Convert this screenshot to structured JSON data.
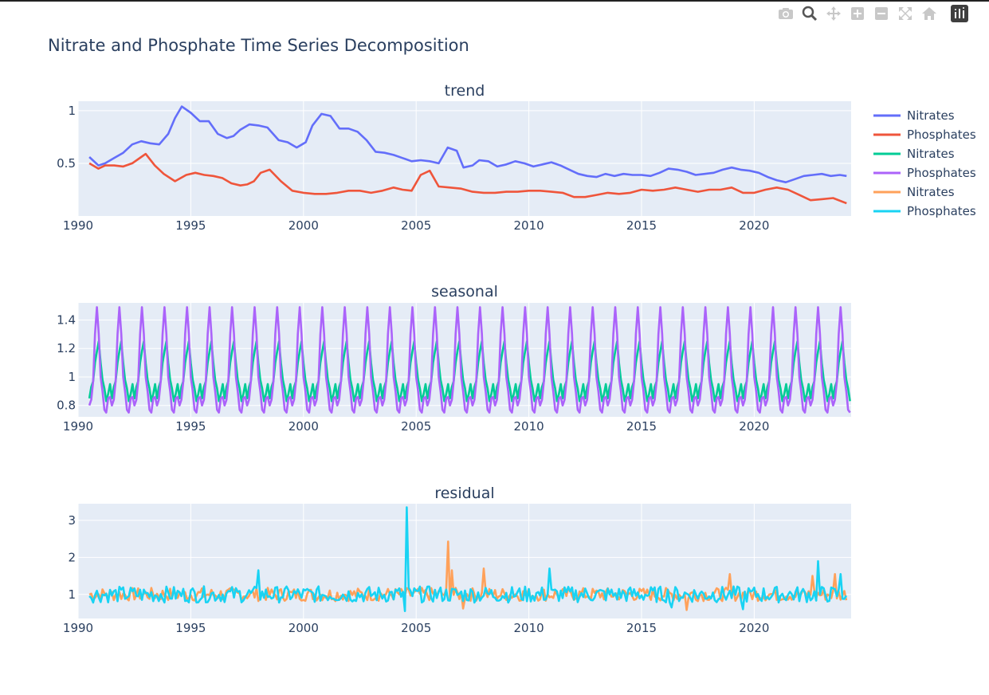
{
  "toolbar": {
    "icons": [
      "camera-icon",
      "zoom-icon",
      "pan-icon",
      "zoom-in-icon",
      "zoom-out-icon",
      "autoscale-icon",
      "home-icon",
      "plotly-logo-icon"
    ]
  },
  "chart_data": {
    "type": "line",
    "title": "Nitrate and Phosphate Time Series Decomposition",
    "x_range": [
      1990,
      2024.3
    ],
    "x_ticks": [
      "1990",
      "1995",
      "2000",
      "2005",
      "2010",
      "2015",
      "2020"
    ],
    "legend_placement": "top-right",
    "legend": [
      {
        "name": "Nitrates",
        "color": "#636efa"
      },
      {
        "name": "Phosphates",
        "color": "#ef553b"
      },
      {
        "name": "Nitrates",
        "color": "#00cc96"
      },
      {
        "name": "Phosphates",
        "color": "#ab63fa"
      },
      {
        "name": "Nitrates",
        "color": "#ffa15a"
      },
      {
        "name": "Phosphates",
        "color": "#19d3f3"
      }
    ],
    "subplots": [
      {
        "subtitle": "trend",
        "ylim": [
          0.0,
          1.09
        ],
        "yticks": [
          {
            "v": 1,
            "label": "1"
          },
          {
            "v": 0.5,
            "label": "0.5"
          }
        ],
        "series": [
          {
            "name": "Nitrates",
            "color": "#636efa",
            "x": [
              1990.5,
              1990.9,
              1991.2,
              1991.6,
              1992,
              1992.4,
              1992.8,
              1993.2,
              1993.6,
              1994,
              1994.3,
              1994.6,
              1995,
              1995.4,
              1995.8,
              1996.2,
              1996.6,
              1996.9,
              1997.2,
              1997.6,
              1998,
              1998.4,
              1998.9,
              1999.3,
              1999.7,
              2000.1,
              2000.4,
              2000.8,
              2001.2,
              2001.6,
              2002,
              2002.4,
              2002.8,
              2003.2,
              2003.6,
              2004,
              2004.4,
              2004.8,
              2005.2,
              2005.6,
              2006,
              2006.4,
              2006.8,
              2007.1,
              2007.5,
              2007.8,
              2008.2,
              2008.6,
              2009,
              2009.4,
              2009.8,
              2010.2,
              2010.6,
              2011,
              2011.4,
              2011.8,
              2012.2,
              2012.6,
              2013,
              2013.4,
              2013.8,
              2014.2,
              2014.6,
              2015,
              2015.4,
              2015.8,
              2016.2,
              2016.6,
              2017,
              2017.4,
              2017.8,
              2018.2,
              2018.6,
              2019,
              2019.4,
              2019.8,
              2020.2,
              2020.6,
              2021,
              2021.4,
              2021.8,
              2022.2,
              2022.6,
              2023,
              2023.4,
              2023.8,
              2024.1
            ],
            "y": [
              0.56,
              0.48,
              0.5,
              0.55,
              0.6,
              0.68,
              0.71,
              0.69,
              0.68,
              0.78,
              0.93,
              1.04,
              0.98,
              0.9,
              0.9,
              0.78,
              0.74,
              0.76,
              0.82,
              0.87,
              0.86,
              0.84,
              0.72,
              0.7,
              0.65,
              0.7,
              0.86,
              0.97,
              0.95,
              0.83,
              0.83,
              0.8,
              0.72,
              0.61,
              0.6,
              0.58,
              0.55,
              0.52,
              0.53,
              0.52,
              0.5,
              0.65,
              0.62,
              0.46,
              0.48,
              0.53,
              0.52,
              0.47,
              0.49,
              0.52,
              0.5,
              0.47,
              0.49,
              0.51,
              0.48,
              0.44,
              0.4,
              0.38,
              0.37,
              0.4,
              0.38,
              0.4,
              0.39,
              0.39,
              0.38,
              0.41,
              0.45,
              0.44,
              0.42,
              0.39,
              0.4,
              0.41,
              0.44,
              0.46,
              0.44,
              0.43,
              0.41,
              0.37,
              0.34,
              0.32,
              0.35,
              0.38,
              0.39,
              0.4,
              0.38,
              0.39,
              0.38
            ]
          },
          {
            "name": "Phosphates",
            "color": "#ef553b",
            "x": [
              1990.5,
              1990.9,
              1991.2,
              1991.6,
              1992,
              1992.4,
              1992.8,
              1993.0,
              1993.4,
              1993.8,
              1994.3,
              1994.8,
              1995.2,
              1995.6,
              1996,
              1996.4,
              1996.8,
              1997.2,
              1997.5,
              1997.8,
              1998.1,
              1998.5,
              1999,
              1999.5,
              2000,
              2000.5,
              2001,
              2001.5,
              2002,
              2002.5,
              2003,
              2003.5,
              2004,
              2004.4,
              2004.8,
              2005.2,
              2005.6,
              2006,
              2006.5,
              2007,
              2007.5,
              2008,
              2008.5,
              2009,
              2009.5,
              2010,
              2010.5,
              2011,
              2011.5,
              2012,
              2012.5,
              2013,
              2013.5,
              2014,
              2014.5,
              2015,
              2015.5,
              2016,
              2016.5,
              2017,
              2017.5,
              2018,
              2018.5,
              2019,
              2019.5,
              2020,
              2020.5,
              2021,
              2021.5,
              2022,
              2022.5,
              2023,
              2023.5,
              2024.1
            ],
            "y": [
              0.5,
              0.45,
              0.48,
              0.48,
              0.47,
              0.5,
              0.56,
              0.59,
              0.48,
              0.4,
              0.33,
              0.39,
              0.41,
              0.39,
              0.38,
              0.36,
              0.31,
              0.29,
              0.3,
              0.33,
              0.41,
              0.44,
              0.33,
              0.24,
              0.22,
              0.21,
              0.21,
              0.22,
              0.24,
              0.24,
              0.22,
              0.24,
              0.27,
              0.25,
              0.24,
              0.39,
              0.43,
              0.28,
              0.27,
              0.26,
              0.23,
              0.22,
              0.22,
              0.23,
              0.23,
              0.24,
              0.24,
              0.23,
              0.22,
              0.18,
              0.18,
              0.2,
              0.22,
              0.21,
              0.22,
              0.25,
              0.24,
              0.25,
              0.27,
              0.25,
              0.23,
              0.25,
              0.25,
              0.27,
              0.22,
              0.22,
              0.25,
              0.27,
              0.25,
              0.2,
              0.15,
              0.16,
              0.17,
              0.12
            ]
          }
        ]
      },
      {
        "subtitle": "seasonal",
        "ylim": [
          0.72,
          1.52
        ],
        "yticks": [
          {
            "v": 1.4,
            "label": "1.4"
          },
          {
            "v": 1.2,
            "label": "1.2"
          },
          {
            "v": 1,
            "label": "1"
          },
          {
            "v": 0.8,
            "label": "0.8"
          }
        ],
        "period_years": 1,
        "start_year": 1990.5,
        "series": [
          {
            "name": "Nitrates",
            "color": "#00cc96",
            "monthly_pattern": [
              0.85,
              0.93,
              0.97,
              1.1,
              1.18,
              1.25,
              1.1,
              0.98,
              0.92,
              0.83,
              0.88,
              0.95
            ]
          },
          {
            "name": "Phosphates",
            "color": "#ab63fa",
            "monthly_pattern": [
              0.8,
              0.84,
              0.97,
              1.3,
              1.49,
              1.3,
              1.0,
              0.9,
              0.77,
              0.75,
              0.85,
              0.86
            ]
          }
        ]
      },
      {
        "subtitle": "residual",
        "ylim": [
          0.35,
          3.45
        ],
        "yticks": [
          {
            "v": 3,
            "label": "3"
          },
          {
            "v": 2,
            "label": "2"
          },
          {
            "v": 1,
            "label": "1"
          }
        ],
        "series": [
          {
            "name": "Nitrates",
            "color": "#ffa15a",
            "base": 1.0,
            "amp": 0.18,
            "spikes": [
              [
                2006.4,
                2.43
              ],
              [
                2006.6,
                1.65
              ],
              [
                2008.0,
                1.7
              ],
              [
                2018.9,
                1.55
              ],
              [
                2022.6,
                1.5
              ],
              [
                2023.6,
                1.55
              ],
              [
                2017.0,
                0.58
              ],
              [
                2007.1,
                0.62
              ]
            ]
          },
          {
            "name": "Phosphates",
            "color": "#19d3f3",
            "base": 1.0,
            "amp": 0.22,
            "spikes": [
              [
                2004.6,
                3.35
              ],
              [
                2004.5,
                0.55
              ],
              [
                1998.0,
                1.65
              ],
              [
                2010.9,
                1.7
              ],
              [
                2022.8,
                1.9
              ],
              [
                2023.8,
                1.55
              ],
              [
                2019.5,
                0.6
              ],
              [
                2016.3,
                0.65
              ]
            ]
          }
        ]
      }
    ]
  }
}
